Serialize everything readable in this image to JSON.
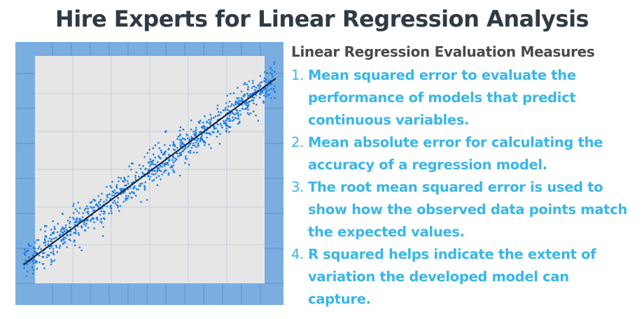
{
  "title": "Hire Experts for Linear Regression Analysis",
  "subtitle": "Linear Regression Evaluation Measures",
  "items": [
    {
      "num": "1.",
      "text": "Mean squared error to evaluate the performance of models that predict continuous variables."
    },
    {
      "num": "2.",
      "text": "Mean absolute error for calculating the accuracy of a regression model."
    },
    {
      "num": "3.",
      "text": "The root mean squared error is used to show how the observed data points match the expected values."
    },
    {
      "num": "4.",
      "text": "R squared helps indicate the extent of variation the developed model can capture."
    }
  ],
  "colors": {
    "title": "#2f3a44",
    "subtitle": "#4a4a4a",
    "list_text": "#38b6e8",
    "frame_blue": "#7aaee0",
    "plot_bg": "#e6e6e6",
    "points": "#1a7ee8",
    "fit_line": "#0b1f3a"
  }
}
